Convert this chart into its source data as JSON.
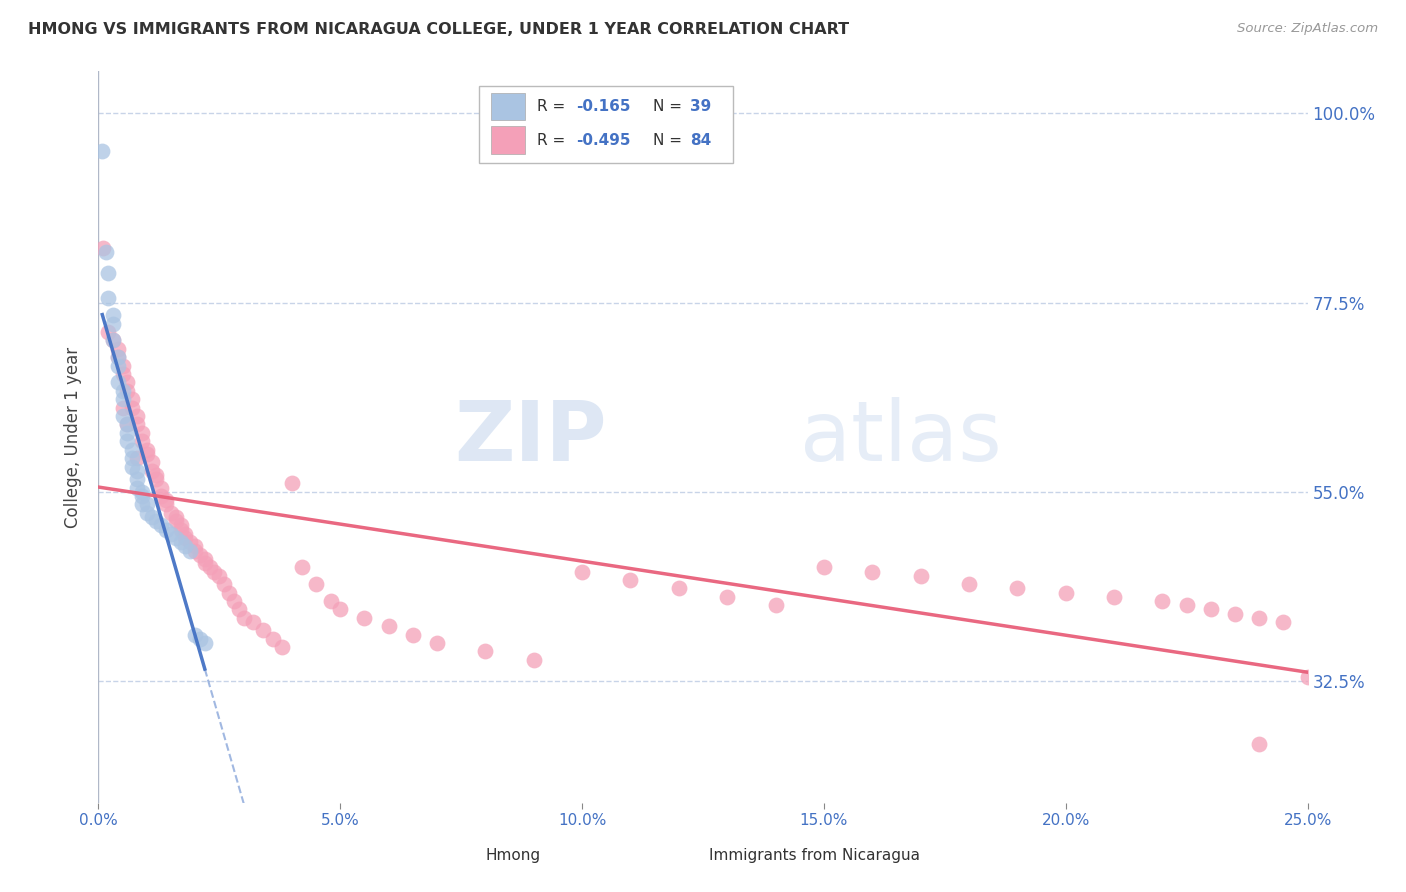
{
  "title": "HMONG VS IMMIGRANTS FROM NICARAGUA COLLEGE, UNDER 1 YEAR CORRELATION CHART",
  "source": "Source: ZipAtlas.com",
  "ylabel": "College, Under 1 year",
  "ytick_labels": [
    "100.0%",
    "77.5%",
    "55.0%",
    "32.5%"
  ],
  "ytick_values": [
    1.0,
    0.775,
    0.55,
    0.325
  ],
  "xmin": 0.0,
  "xmax": 0.25,
  "ymin": 0.18,
  "ymax": 1.05,
  "hmong_color": "#aac4e2",
  "nicaragua_color": "#f4a0b8",
  "hmong_line_color": "#4472c4",
  "nicaragua_line_color": "#e8607a",
  "hmong_r": -0.165,
  "hmong_n": 39,
  "nicaragua_r": -0.495,
  "nicaragua_n": 84,
  "background_color": "#ffffff",
  "grid_color": "#c8d4e8",
  "hmong_x": [
    0.0008,
    0.0015,
    0.002,
    0.002,
    0.003,
    0.003,
    0.003,
    0.004,
    0.004,
    0.004,
    0.005,
    0.005,
    0.005,
    0.006,
    0.006,
    0.006,
    0.007,
    0.007,
    0.007,
    0.008,
    0.008,
    0.008,
    0.009,
    0.009,
    0.009,
    0.01,
    0.01,
    0.011,
    0.012,
    0.013,
    0.014,
    0.015,
    0.016,
    0.017,
    0.018,
    0.019,
    0.02,
    0.021,
    0.022
  ],
  "hmong_y": [
    0.955,
    0.835,
    0.81,
    0.78,
    0.76,
    0.75,
    0.73,
    0.71,
    0.7,
    0.68,
    0.67,
    0.66,
    0.64,
    0.63,
    0.62,
    0.61,
    0.6,
    0.59,
    0.58,
    0.575,
    0.565,
    0.555,
    0.55,
    0.545,
    0.535,
    0.535,
    0.525,
    0.52,
    0.515,
    0.51,
    0.505,
    0.5,
    0.495,
    0.49,
    0.485,
    0.48,
    0.38,
    0.375,
    0.37
  ],
  "nicaragua_x": [
    0.001,
    0.002,
    0.003,
    0.004,
    0.004,
    0.005,
    0.005,
    0.006,
    0.006,
    0.007,
    0.007,
    0.008,
    0.008,
    0.009,
    0.009,
    0.01,
    0.01,
    0.011,
    0.011,
    0.012,
    0.012,
    0.013,
    0.013,
    0.014,
    0.014,
    0.015,
    0.016,
    0.016,
    0.017,
    0.017,
    0.018,
    0.018,
    0.019,
    0.02,
    0.02,
    0.021,
    0.022,
    0.022,
    0.023,
    0.024,
    0.025,
    0.026,
    0.027,
    0.028,
    0.029,
    0.03,
    0.032,
    0.034,
    0.036,
    0.038,
    0.04,
    0.042,
    0.045,
    0.048,
    0.05,
    0.055,
    0.06,
    0.065,
    0.07,
    0.08,
    0.09,
    0.1,
    0.11,
    0.12,
    0.13,
    0.14,
    0.15,
    0.16,
    0.17,
    0.18,
    0.19,
    0.2,
    0.21,
    0.22,
    0.225,
    0.23,
    0.235,
    0.24,
    0.245,
    0.25,
    0.005,
    0.006,
    0.008,
    0.24
  ],
  "nicaragua_y": [
    0.84,
    0.74,
    0.73,
    0.72,
    0.71,
    0.7,
    0.69,
    0.68,
    0.67,
    0.66,
    0.65,
    0.64,
    0.63,
    0.62,
    0.61,
    0.6,
    0.595,
    0.585,
    0.575,
    0.57,
    0.565,
    0.555,
    0.545,
    0.54,
    0.535,
    0.525,
    0.52,
    0.515,
    0.51,
    0.505,
    0.5,
    0.495,
    0.49,
    0.485,
    0.48,
    0.475,
    0.47,
    0.465,
    0.46,
    0.455,
    0.45,
    0.44,
    0.43,
    0.42,
    0.41,
    0.4,
    0.395,
    0.385,
    0.375,
    0.365,
    0.56,
    0.46,
    0.44,
    0.42,
    0.41,
    0.4,
    0.39,
    0.38,
    0.37,
    0.36,
    0.35,
    0.455,
    0.445,
    0.435,
    0.425,
    0.415,
    0.46,
    0.455,
    0.45,
    0.44,
    0.435,
    0.43,
    0.425,
    0.42,
    0.415,
    0.41,
    0.405,
    0.4,
    0.395,
    0.33,
    0.65,
    0.63,
    0.59,
    0.25
  ]
}
